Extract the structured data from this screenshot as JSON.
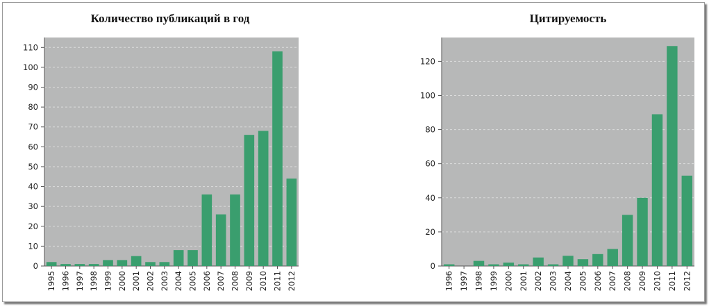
{
  "colors": {
    "plot_bg": "#b7b8b8",
    "bar": "#3a9e6e",
    "grid": "#dcdcdc",
    "axis": "#555555"
  },
  "chart_data": [
    {
      "type": "bar",
      "title": "Количество публикаций в год",
      "xlabel": "",
      "ylabel": "",
      "categories": [
        "1995",
        "1996",
        "1997",
        "1998",
        "1999",
        "2000",
        "2001",
        "2002",
        "2003",
        "2004",
        "2005",
        "2006",
        "2007",
        "2008",
        "2009",
        "2010",
        "2011",
        "2012"
      ],
      "values": [
        2,
        1,
        1,
        1,
        3,
        3,
        5,
        2,
        2,
        8,
        8,
        36,
        26,
        36,
        66,
        68,
        108,
        44
      ],
      "ylim": [
        0,
        115
      ],
      "yticks": [
        0,
        10,
        20,
        30,
        40,
        50,
        60,
        70,
        80,
        90,
        100,
        110
      ],
      "grid": true
    },
    {
      "type": "bar",
      "title": "Цитируемость",
      "xlabel": "",
      "ylabel": "",
      "categories": [
        "1996",
        "1997",
        "1998",
        "1999",
        "2000",
        "2001",
        "2002",
        "2003",
        "2004",
        "2005",
        "2006",
        "2007",
        "2008",
        "2009",
        "2010",
        "2011",
        "2012"
      ],
      "values": [
        1,
        0,
        3,
        1,
        2,
        1,
        5,
        1,
        6,
        4,
        7,
        10,
        30,
        40,
        89,
        129,
        53
      ],
      "ylim": [
        0,
        134
      ],
      "yticks": [
        0,
        20,
        40,
        60,
        80,
        100,
        120
      ],
      "grid": true
    }
  ]
}
